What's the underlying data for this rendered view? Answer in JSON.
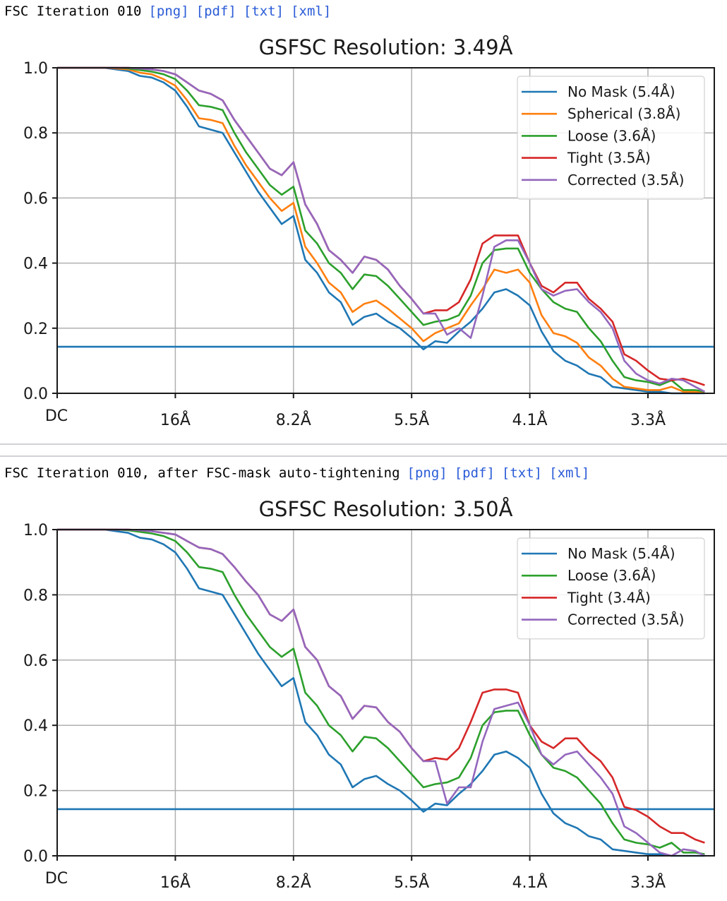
{
  "sections": [
    {
      "header": "FSC Iteration 010",
      "links": [
        "[png]",
        "[pdf]",
        "[txt]",
        "[xml]"
      ]
    },
    {
      "header": "FSC Iteration 010, after FSC-mask auto-tightening",
      "links": [
        "[png]",
        "[pdf]",
        "[txt]",
        "[xml]"
      ]
    }
  ],
  "chart_data": [
    {
      "type": "line",
      "title": "GSFSC Resolution: 3.49Å",
      "xlabel": "",
      "ylabel": "",
      "x_tick_labels": [
        "DC",
        "16Å",
        "8.2Å",
        "5.5Å",
        "4.1Å",
        "3.3Å"
      ],
      "x_tick_units": [
        0,
        1,
        2,
        3,
        4,
        5
      ],
      "x_range": [
        0,
        5.56
      ],
      "y_tick_labels": [
        "0.0",
        "0.2",
        "0.4",
        "0.6",
        "0.8",
        "1.0"
      ],
      "ylim": [
        0,
        1
      ],
      "grid": true,
      "legend_position": "top-right",
      "threshold": 0.143,
      "threshold_color": "#1f77b4",
      "x": [
        0,
        0.1,
        0.2,
        0.3,
        0.4,
        0.5,
        0.6,
        0.7,
        0.8,
        0.9,
        1.0,
        1.1,
        1.2,
        1.3,
        1.4,
        1.5,
        1.6,
        1.7,
        1.8,
        1.9,
        2.0,
        2.1,
        2.2,
        2.3,
        2.4,
        2.5,
        2.6,
        2.7,
        2.8,
        2.9,
        3.0,
        3.1,
        3.2,
        3.3,
        3.4,
        3.5,
        3.6,
        3.7,
        3.8,
        3.9,
        4.0,
        4.1,
        4.2,
        4.3,
        4.4,
        4.5,
        4.6,
        4.7,
        4.8,
        4.9,
        5.0,
        5.1,
        5.2,
        5.3,
        5.4,
        5.5
      ],
      "series": [
        {
          "name": "No Mask (5.4Å)",
          "color": "#1f77b4",
          "values": [
            1.0,
            1.0,
            1.0,
            1.0,
            1.0,
            0.995,
            0.99,
            0.975,
            0.97,
            0.955,
            0.93,
            0.88,
            0.82,
            0.81,
            0.8,
            0.74,
            0.68,
            0.62,
            0.57,
            0.52,
            0.545,
            0.41,
            0.37,
            0.31,
            0.28,
            0.21,
            0.235,
            0.245,
            0.22,
            0.2,
            0.17,
            0.135,
            0.16,
            0.155,
            0.19,
            0.22,
            0.26,
            0.31,
            0.32,
            0.3,
            0.27,
            0.19,
            0.13,
            0.1,
            0.085,
            0.06,
            0.05,
            0.02,
            0.015,
            0.01,
            0.005,
            0.005,
            0.0,
            0.0,
            0.0,
            0.0
          ]
        },
        {
          "name": "Spherical (3.8Å)",
          "color": "#ff7f0e",
          "values": [
            1.0,
            1.0,
            1.0,
            1.0,
            1.0,
            0.998,
            0.995,
            0.985,
            0.98,
            0.965,
            0.945,
            0.9,
            0.845,
            0.84,
            0.83,
            0.76,
            0.7,
            0.65,
            0.6,
            0.56,
            0.585,
            0.45,
            0.4,
            0.34,
            0.31,
            0.25,
            0.275,
            0.285,
            0.26,
            0.23,
            0.2,
            0.16,
            0.185,
            0.2,
            0.215,
            0.27,
            0.32,
            0.38,
            0.37,
            0.38,
            0.34,
            0.24,
            0.185,
            0.175,
            0.155,
            0.11,
            0.085,
            0.045,
            0.02,
            0.015,
            0.01,
            0.01,
            0.02,
            0.005,
            0.005,
            0.005
          ]
        },
        {
          "name": "Loose (3.6Å)",
          "color": "#2ca02c",
          "values": [
            1.0,
            1.0,
            1.0,
            1.0,
            1.0,
            1.0,
            0.998,
            0.993,
            0.988,
            0.98,
            0.965,
            0.93,
            0.885,
            0.88,
            0.87,
            0.8,
            0.74,
            0.69,
            0.64,
            0.61,
            0.635,
            0.5,
            0.46,
            0.4,
            0.37,
            0.32,
            0.365,
            0.36,
            0.33,
            0.29,
            0.25,
            0.21,
            0.22,
            0.225,
            0.24,
            0.3,
            0.4,
            0.44,
            0.445,
            0.445,
            0.37,
            0.32,
            0.28,
            0.26,
            0.25,
            0.2,
            0.16,
            0.1,
            0.05,
            0.04,
            0.035,
            0.025,
            0.04,
            0.01,
            0.01,
            0.005
          ]
        },
        {
          "name": "Tight (3.5Å)",
          "color": "#d62728",
          "values": [
            1.0,
            1.0,
            1.0,
            1.0,
            1.0,
            1.0,
            1.0,
            0.998,
            0.995,
            0.99,
            0.98,
            0.955,
            0.93,
            0.92,
            0.9,
            0.84,
            0.79,
            0.74,
            0.69,
            0.67,
            0.71,
            0.58,
            0.52,
            0.44,
            0.41,
            0.37,
            0.42,
            0.41,
            0.38,
            0.33,
            0.29,
            0.245,
            0.255,
            0.255,
            0.28,
            0.35,
            0.46,
            0.485,
            0.485,
            0.485,
            0.4,
            0.33,
            0.31,
            0.34,
            0.34,
            0.29,
            0.26,
            0.22,
            0.12,
            0.1,
            0.07,
            0.045,
            0.04,
            0.045,
            0.035,
            0.025
          ]
        },
        {
          "name": "Corrected (3.5Å)",
          "color": "#9467bd",
          "values": [
            1.0,
            1.0,
            1.0,
            1.0,
            1.0,
            1.0,
            1.0,
            0.998,
            0.995,
            0.99,
            0.98,
            0.955,
            0.93,
            0.92,
            0.9,
            0.84,
            0.79,
            0.74,
            0.69,
            0.67,
            0.71,
            0.58,
            0.52,
            0.44,
            0.41,
            0.37,
            0.42,
            0.41,
            0.38,
            0.33,
            0.29,
            0.245,
            0.245,
            0.18,
            0.2,
            0.17,
            0.3,
            0.45,
            0.47,
            0.47,
            0.4,
            0.32,
            0.3,
            0.315,
            0.32,
            0.28,
            0.25,
            0.2,
            0.1,
            0.06,
            0.04,
            0.03,
            0.045,
            0.04,
            0.02,
            0.005
          ]
        }
      ]
    },
    {
      "type": "line",
      "title": "GSFSC Resolution: 3.50Å",
      "xlabel": "",
      "ylabel": "",
      "x_tick_labels": [
        "DC",
        "16Å",
        "8.2Å",
        "5.5Å",
        "4.1Å",
        "3.3Å"
      ],
      "x_tick_units": [
        0,
        1,
        2,
        3,
        4,
        5
      ],
      "x_range": [
        0,
        5.56
      ],
      "y_tick_labels": [
        "0.0",
        "0.2",
        "0.4",
        "0.6",
        "0.8",
        "1.0"
      ],
      "ylim": [
        0,
        1
      ],
      "grid": true,
      "legend_position": "top-right",
      "threshold": 0.143,
      "threshold_color": "#1f77b4",
      "x": [
        0,
        0.1,
        0.2,
        0.3,
        0.4,
        0.5,
        0.6,
        0.7,
        0.8,
        0.9,
        1.0,
        1.1,
        1.2,
        1.3,
        1.4,
        1.5,
        1.6,
        1.7,
        1.8,
        1.9,
        2.0,
        2.1,
        2.2,
        2.3,
        2.4,
        2.5,
        2.6,
        2.7,
        2.8,
        2.9,
        3.0,
        3.1,
        3.2,
        3.3,
        3.4,
        3.5,
        3.6,
        3.7,
        3.8,
        3.9,
        4.0,
        4.1,
        4.2,
        4.3,
        4.4,
        4.5,
        4.6,
        4.7,
        4.8,
        4.9,
        5.0,
        5.1,
        5.2,
        5.3,
        5.4,
        5.5
      ],
      "series": [
        {
          "name": "No Mask (5.4Å)",
          "color": "#1f77b4",
          "values": [
            1.0,
            1.0,
            1.0,
            1.0,
            1.0,
            0.995,
            0.99,
            0.975,
            0.97,
            0.955,
            0.93,
            0.88,
            0.82,
            0.81,
            0.8,
            0.74,
            0.68,
            0.62,
            0.57,
            0.52,
            0.545,
            0.41,
            0.37,
            0.31,
            0.28,
            0.21,
            0.235,
            0.245,
            0.22,
            0.2,
            0.17,
            0.135,
            0.16,
            0.155,
            0.19,
            0.22,
            0.26,
            0.31,
            0.32,
            0.3,
            0.27,
            0.19,
            0.13,
            0.1,
            0.085,
            0.06,
            0.05,
            0.02,
            0.015,
            0.01,
            0.005,
            0.005,
            0.0,
            0.0,
            0.0,
            0.0
          ]
        },
        {
          "name": "Loose (3.6Å)",
          "color": "#2ca02c",
          "values": [
            1.0,
            1.0,
            1.0,
            1.0,
            1.0,
            1.0,
            0.998,
            0.993,
            0.988,
            0.98,
            0.965,
            0.93,
            0.885,
            0.88,
            0.87,
            0.8,
            0.74,
            0.69,
            0.64,
            0.61,
            0.635,
            0.5,
            0.46,
            0.4,
            0.37,
            0.32,
            0.365,
            0.36,
            0.33,
            0.29,
            0.25,
            0.21,
            0.22,
            0.225,
            0.24,
            0.3,
            0.4,
            0.44,
            0.445,
            0.445,
            0.37,
            0.31,
            0.27,
            0.26,
            0.24,
            0.2,
            0.16,
            0.1,
            0.05,
            0.04,
            0.035,
            0.025,
            0.04,
            0.01,
            0.01,
            0.005
          ]
        },
        {
          "name": "Tight (3.4Å)",
          "color": "#d62728",
          "values": [
            1.0,
            1.0,
            1.0,
            1.0,
            1.0,
            1.0,
            1.0,
            0.998,
            0.995,
            0.99,
            0.985,
            0.965,
            0.945,
            0.94,
            0.925,
            0.885,
            0.84,
            0.8,
            0.74,
            0.72,
            0.755,
            0.64,
            0.6,
            0.52,
            0.49,
            0.42,
            0.46,
            0.455,
            0.41,
            0.38,
            0.33,
            0.29,
            0.3,
            0.295,
            0.33,
            0.41,
            0.5,
            0.51,
            0.51,
            0.5,
            0.4,
            0.35,
            0.33,
            0.36,
            0.36,
            0.32,
            0.29,
            0.24,
            0.15,
            0.14,
            0.12,
            0.09,
            0.07,
            0.07,
            0.05,
            0.04
          ]
        },
        {
          "name": "Corrected (3.5Å)",
          "color": "#9467bd",
          "values": [
            1.0,
            1.0,
            1.0,
            1.0,
            1.0,
            1.0,
            1.0,
            0.998,
            0.995,
            0.99,
            0.985,
            0.965,
            0.945,
            0.94,
            0.925,
            0.885,
            0.84,
            0.8,
            0.74,
            0.72,
            0.755,
            0.64,
            0.6,
            0.52,
            0.49,
            0.42,
            0.46,
            0.455,
            0.41,
            0.38,
            0.33,
            0.29,
            0.29,
            0.16,
            0.21,
            0.21,
            0.35,
            0.45,
            0.46,
            0.47,
            0.4,
            0.31,
            0.28,
            0.31,
            0.32,
            0.28,
            0.24,
            0.19,
            0.09,
            0.07,
            0.04,
            0.01,
            0.0,
            0.02,
            0.015,
            0.0
          ]
        }
      ]
    }
  ]
}
